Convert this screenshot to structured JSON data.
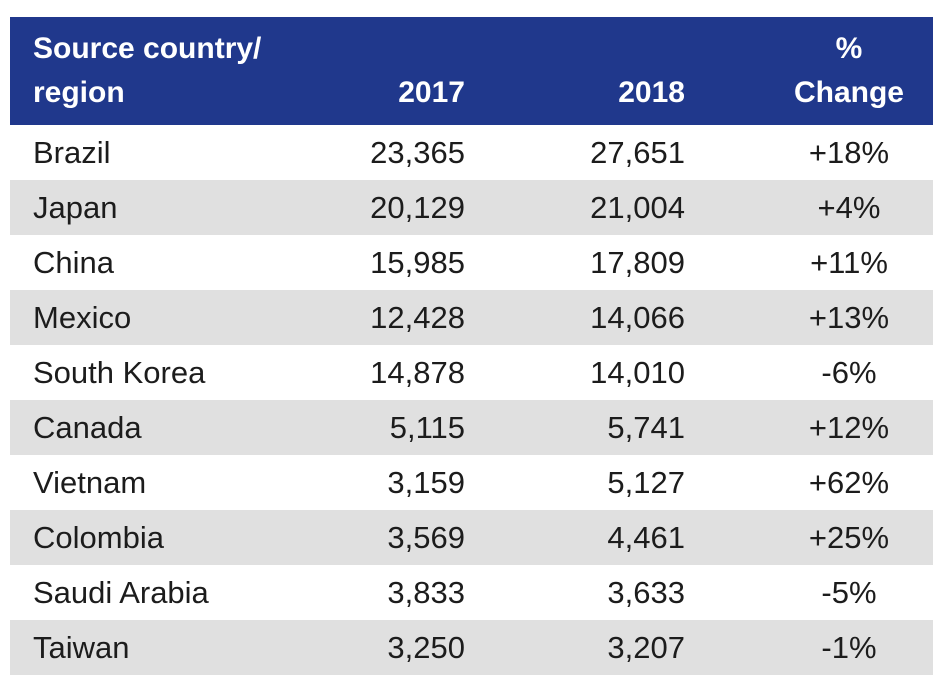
{
  "colors": {
    "header_bg": "#20388c",
    "header_text": "#ffffff",
    "row_stripe": "#e0e0e0",
    "row_plain": "#ffffff",
    "body_text": "#1c1c1c"
  },
  "header": {
    "col1_line1": "Source country/",
    "col1_line2": "region",
    "col2": "2017",
    "col3": "2018",
    "col4_line1": "%",
    "col4_line2": "Change"
  },
  "rows": [
    {
      "country": "Brazil",
      "v2017": "23,365",
      "v2018": "27,651",
      "change": "+18%"
    },
    {
      "country": "Japan",
      "v2017": "20,129",
      "v2018": "21,004",
      "change": "+4%"
    },
    {
      "country": "China",
      "v2017": "15,985",
      "v2018": "17,809",
      "change": "+11%"
    },
    {
      "country": "Mexico",
      "v2017": "12,428",
      "v2018": "14,066",
      "change": "+13%"
    },
    {
      "country": "South Korea",
      "v2017": "14,878",
      "v2018": "14,010",
      "change": "-6%"
    },
    {
      "country": "Canada",
      "v2017": "5,115",
      "v2018": "5,741",
      "change": "+12%"
    },
    {
      "country": "Vietnam",
      "v2017": "3,159",
      "v2018": "5,127",
      "change": "+62%"
    },
    {
      "country": "Colombia",
      "v2017": "3,569",
      "v2018": "4,461",
      "change": "+25%"
    },
    {
      "country": "Saudi Arabia",
      "v2017": "3,833",
      "v2018": "3,633",
      "change": "-5%"
    },
    {
      "country": "Taiwan",
      "v2017": "3,250",
      "v2018": "3,207",
      "change": "-1%"
    }
  ],
  "chart_data": {
    "type": "table",
    "title": "",
    "columns": [
      "Source country/region",
      "2017",
      "2018",
      "% Change"
    ],
    "rows": [
      [
        "Brazil",
        23365,
        27651,
        "+18%"
      ],
      [
        "Japan",
        20129,
        21004,
        "+4%"
      ],
      [
        "China",
        15985,
        17809,
        "+11%"
      ],
      [
        "Mexico",
        12428,
        14066,
        "+13%"
      ],
      [
        "South Korea",
        14878,
        14010,
        "-6%"
      ],
      [
        "Canada",
        5115,
        5741,
        "+12%"
      ],
      [
        "Vietnam",
        3159,
        5127,
        "+62%"
      ],
      [
        "Colombia",
        3569,
        4461,
        "+25%"
      ],
      [
        "Saudi Arabia",
        3833,
        3633,
        "-5%"
      ],
      [
        "Taiwan",
        3250,
        3207,
        "-1%"
      ]
    ]
  }
}
